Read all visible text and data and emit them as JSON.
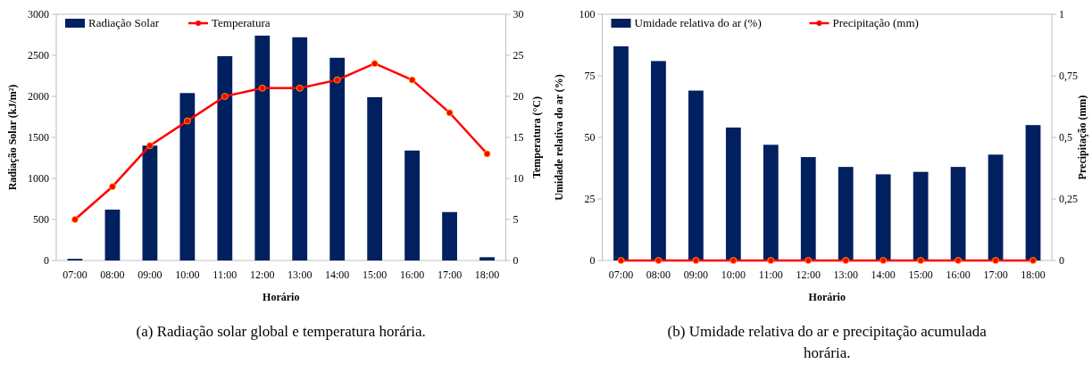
{
  "chart_data": [
    {
      "type": "bar",
      "xlabel": "Horário",
      "ylabel": "Radiação Solar (kJ/m²)",
      "y2label": "Temperatura (°C)",
      "categories": [
        "07:00",
        "08:00",
        "09:00",
        "10:00",
        "11:00",
        "12:00",
        "13:00",
        "14:00",
        "15:00",
        "16:00",
        "17:00",
        "18:00"
      ],
      "series": [
        {
          "name": "Radiação Solar",
          "color": "#002060",
          "values": [
            20,
            620,
            1400,
            2040,
            2490,
            2740,
            2720,
            2470,
            1990,
            1340,
            590,
            40
          ]
        },
        {
          "name": "Temperatura",
          "type": "line",
          "axis": "y2",
          "color": "#ff0000",
          "values": [
            5,
            9,
            14,
            17,
            20,
            21,
            21,
            22,
            24,
            22,
            18,
            13
          ]
        }
      ],
      "ylim": [
        0,
        3000
      ],
      "yticks": [
        0,
        500,
        1000,
        1500,
        2000,
        2500,
        3000
      ],
      "y2lim": [
        0,
        30
      ],
      "y2ticks": [
        0,
        5,
        10,
        15,
        20,
        25,
        30
      ],
      "marker": "circle",
      "legend": "top left",
      "grid": false,
      "annotations": [
        "(a) Radiação solar global e temperatura horária."
      ]
    },
    {
      "type": "bar",
      "xlabel": "Horário",
      "ylabel": "Umidade relativa do ar (%)",
      "y2label": "Precipitação (mm)",
      "categories": [
        "07:00",
        "08:00",
        "09:00",
        "10:00",
        "11:00",
        "12:00",
        "13:00",
        "14:00",
        "15:00",
        "16:00",
        "17:00",
        "18:00"
      ],
      "series": [
        {
          "name": "Umidade relativa do ar (%)",
          "color": "#002060",
          "values": [
            87,
            81,
            69,
            54,
            47,
            42,
            38,
            35,
            36,
            38,
            43,
            55
          ]
        },
        {
          "name": "Precipitação (mm)",
          "type": "line",
          "axis": "y2",
          "color": "#ff0000",
          "values": [
            0,
            0,
            0,
            0,
            0,
            0,
            0,
            0,
            0,
            0,
            0,
            0
          ]
        }
      ],
      "ylim": [
        0,
        100
      ],
      "yticks": [
        0,
        25,
        50,
        75,
        100
      ],
      "y2lim": [
        0,
        1
      ],
      "y2ticks": [
        0,
        {
          "value": 0.25,
          "label": "0,25"
        },
        {
          "value": 0.5,
          "label": "0,5"
        },
        {
          "value": 0.75,
          "label": "0,75"
        },
        1
      ],
      "marker": "circle",
      "legend": "top left",
      "grid": false,
      "annotations": [
        "(b) Umidade relativa do ar e precipitação acumulada horária."
      ]
    }
  ]
}
